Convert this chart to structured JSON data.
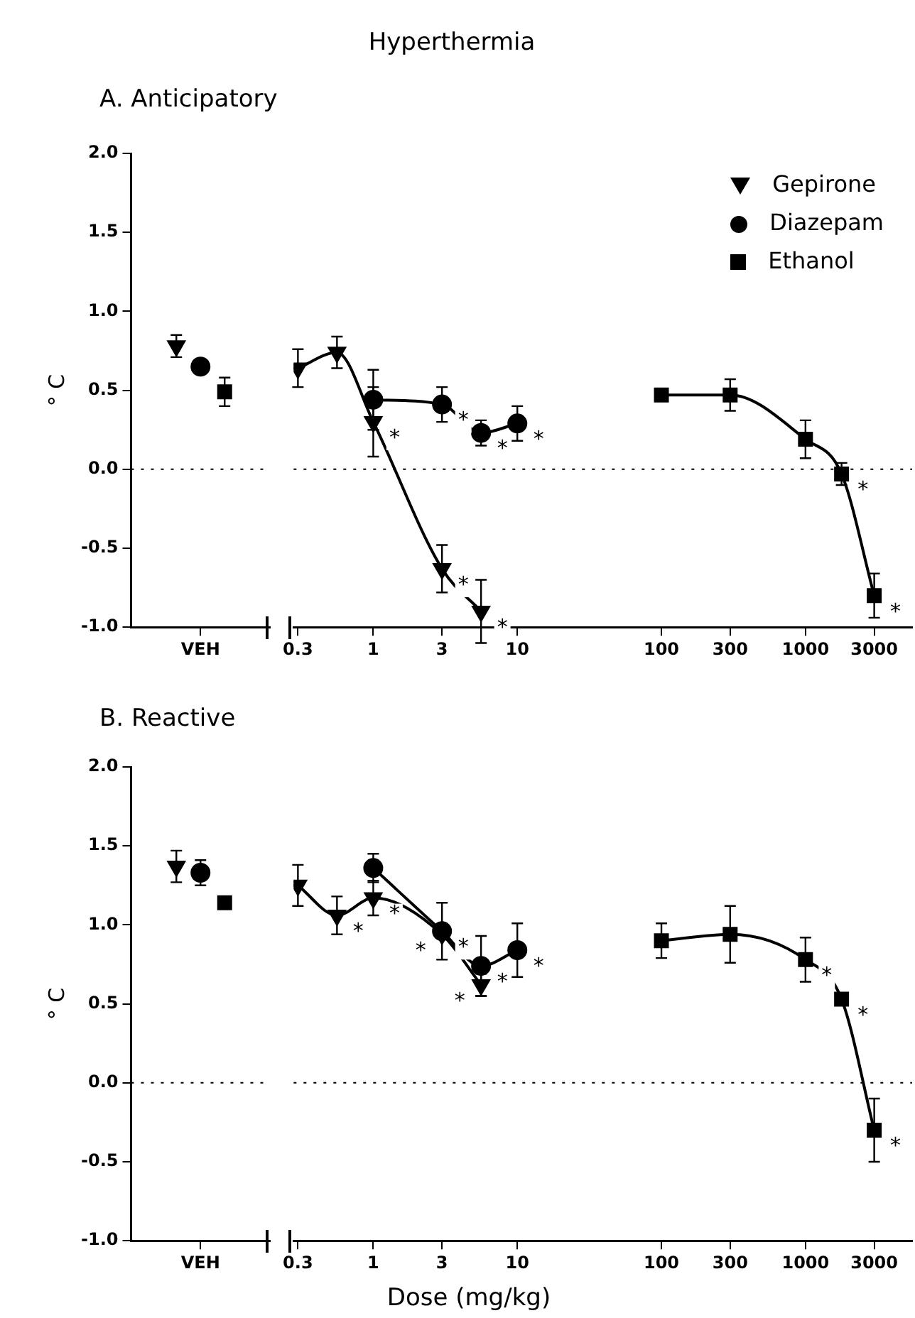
{
  "chart_data": [
    {
      "type": "scatter",
      "subtitle": "A. Anticipatory",
      "ylabel": "° C",
      "categories": [
        "VEH"
      ],
      "ylim": [
        -1,
        2
      ],
      "yticks": [
        {
          "value": -1,
          "label": "-1.0"
        },
        {
          "value": -0.5,
          "label": "-0.5"
        },
        {
          "value": 0,
          "label": "0.0"
        },
        {
          "value": 0.5,
          "label": "0.5"
        },
        {
          "value": 1,
          "label": "1.0"
        },
        {
          "value": 1.5,
          "label": "1.5"
        },
        {
          "value": 2,
          "label": "2.0"
        }
      ],
      "grid": false,
      "legend": false,
      "ref_lines": [
        {
          "axis": "y",
          "value": 0,
          "line_style": "dotted"
        }
      ],
      "series": [
        {
          "color": "#000000",
          "marker": "triangle",
          "x": [
            "VEH"
          ],
          "values": [
            0.78
          ],
          "errors": [
            0.07
          ]
        },
        {
          "color": "#000000",
          "marker": "circle",
          "x": [
            "VEH"
          ],
          "values": [
            0.65
          ]
        },
        {
          "color": "#000000",
          "marker": "square",
          "x": [
            "VEH"
          ],
          "values": [
            0.49
          ],
          "errors": [
            0.09
          ]
        }
      ]
    },
    {
      "type": "line",
      "title": "Hyperthermia",
      "log": "x",
      "xlim": [
        0.28,
        5500
      ],
      "xticks": [
        0.3,
        1,
        3,
        10,
        100,
        300,
        1000,
        3000
      ],
      "ylim": [
        -1,
        2
      ],
      "tick_labels": "x",
      "grid": false,
      "legend": "top right",
      "ref_lines": [
        {
          "axis": "y",
          "value": 0,
          "line_style": "dotted"
        }
      ],
      "series": [
        {
          "name": "Gepirone",
          "color": "#000000",
          "marker": "triangle",
          "x": [
            0.3,
            0.56,
            1,
            3,
            5.6
          ],
          "values": [
            0.64,
            0.74,
            0.3,
            -0.63,
            -0.9
          ],
          "errors": [
            0.12,
            0.1,
            0.22,
            0.15,
            0.2
          ]
        },
        {
          "name": "Diazepam",
          "color": "#000000",
          "marker": "circle",
          "x": [
            1,
            3,
            5.6,
            10
          ],
          "values": [
            0.44,
            0.41,
            0.23,
            0.29
          ],
          "errors": [
            0.19,
            0.11,
            0.08,
            0.11
          ]
        },
        {
          "name": "Ethanol",
          "color": "#000000",
          "marker": "square",
          "x": [
            100,
            300,
            1000,
            1780,
            3000
          ],
          "values": [
            0.47,
            0.47,
            0.19,
            -0.03,
            -0.8
          ],
          "errors": [
            null,
            0.1,
            0.12,
            0.07,
            0.14
          ]
        }
      ],
      "annotations": [
        {
          "text": "*",
          "x": 1,
          "y": 0.3
        },
        {
          "text": "*",
          "x": 3,
          "y": 0.41
        },
        {
          "text": "*",
          "x": 5.6,
          "y": 0.23
        },
        {
          "text": "*",
          "x": 10,
          "y": 0.29
        },
        {
          "text": "*",
          "x": 3,
          "y": -0.63
        },
        {
          "text": "*",
          "x": 5.6,
          "y": -0.9
        },
        {
          "text": "*",
          "x": 1780,
          "y": -0.03
        },
        {
          "text": "*",
          "x": 3000,
          "y": -0.8
        }
      ]
    },
    {
      "type": "scatter",
      "subtitle": "B. Reactive",
      "ylabel": "° C",
      "categories": [
        "VEH"
      ],
      "ylim": [
        -1,
        2
      ],
      "yticks": [
        {
          "value": -1,
          "label": "-1.0"
        },
        {
          "value": -0.5,
          "label": "-0.5"
        },
        {
          "value": 0,
          "label": "0.0"
        },
        {
          "value": 0.5,
          "label": "0.5"
        },
        {
          "value": 1,
          "label": "1.0"
        },
        {
          "value": 1.5,
          "label": "1.5"
        },
        {
          "value": 2,
          "label": "2.0"
        }
      ],
      "grid": false,
      "legend": false,
      "ref_lines": [
        {
          "axis": "y",
          "value": 0,
          "line_style": "dotted"
        }
      ],
      "series": [
        {
          "color": "#000000",
          "marker": "triangle",
          "x": [
            "VEH"
          ],
          "values": [
            1.37
          ],
          "errors": [
            0.1
          ]
        },
        {
          "color": "#000000",
          "marker": "circle",
          "x": [
            "VEH"
          ],
          "values": [
            1.33
          ],
          "errors": [
            0.08
          ]
        },
        {
          "color": "#000000",
          "marker": "square",
          "x": [
            "VEH"
          ],
          "values": [
            1.14
          ]
        }
      ]
    },
    {
      "type": "line",
      "xlabel": "Dose (mg/kg)",
      "log": "x",
      "xlim": [
        0.28,
        5500
      ],
      "xticks": [
        0.3,
        1,
        3,
        10,
        100,
        300,
        1000,
        3000
      ],
      "ylim": [
        -1,
        2
      ],
      "tick_labels": "x",
      "grid": false,
      "legend": false,
      "ref_lines": [
        {
          "axis": "y",
          "value": 0,
          "line_style": "dotted"
        }
      ],
      "series": [
        {
          "color": "#000000",
          "marker": "triangle",
          "x": [
            0.3,
            0.56,
            1,
            3,
            5.6
          ],
          "values": [
            1.25,
            1.06,
            1.17,
            0.94,
            0.62
          ],
          "errors": [
            0.13,
            0.12,
            0.11,
            null,
            0.07
          ]
        },
        {
          "color": "#000000",
          "marker": "circle",
          "x": [
            1,
            3,
            5.6,
            10
          ],
          "values": [
            1.36,
            0.96,
            0.74,
            0.84
          ],
          "errors": [
            0.09,
            0.18,
            0.19,
            0.17
          ]
        },
        {
          "color": "#000000",
          "marker": "square",
          "x": [
            100,
            300,
            1000,
            1780,
            3000
          ],
          "values": [
            0.9,
            0.94,
            0.78,
            0.53,
            -0.3
          ],
          "errors": [
            0.11,
            0.18,
            0.14,
            null,
            0.2
          ]
        }
      ],
      "annotations": [
        {
          "text": "*",
          "x": 0.56,
          "y": 1.06
        },
        {
          "text": "*",
          "x": 1,
          "y": 1.17
        },
        {
          "text": "*",
          "x": 3,
          "y": 0.96
        },
        {
          "text": "*",
          "x": 3,
          "y": 0.94
        },
        {
          "text": "*",
          "x": 5.6,
          "y": 0.74
        },
        {
          "text": "*",
          "x": 5.6,
          "y": 0.62
        },
        {
          "text": "*",
          "x": 10,
          "y": 0.84
        },
        {
          "text": "*",
          "x": 1000,
          "y": 0.78
        },
        {
          "text": "*",
          "x": 1780,
          "y": 0.53
        },
        {
          "text": "*",
          "x": 3000,
          "y": -0.3
        }
      ]
    }
  ]
}
